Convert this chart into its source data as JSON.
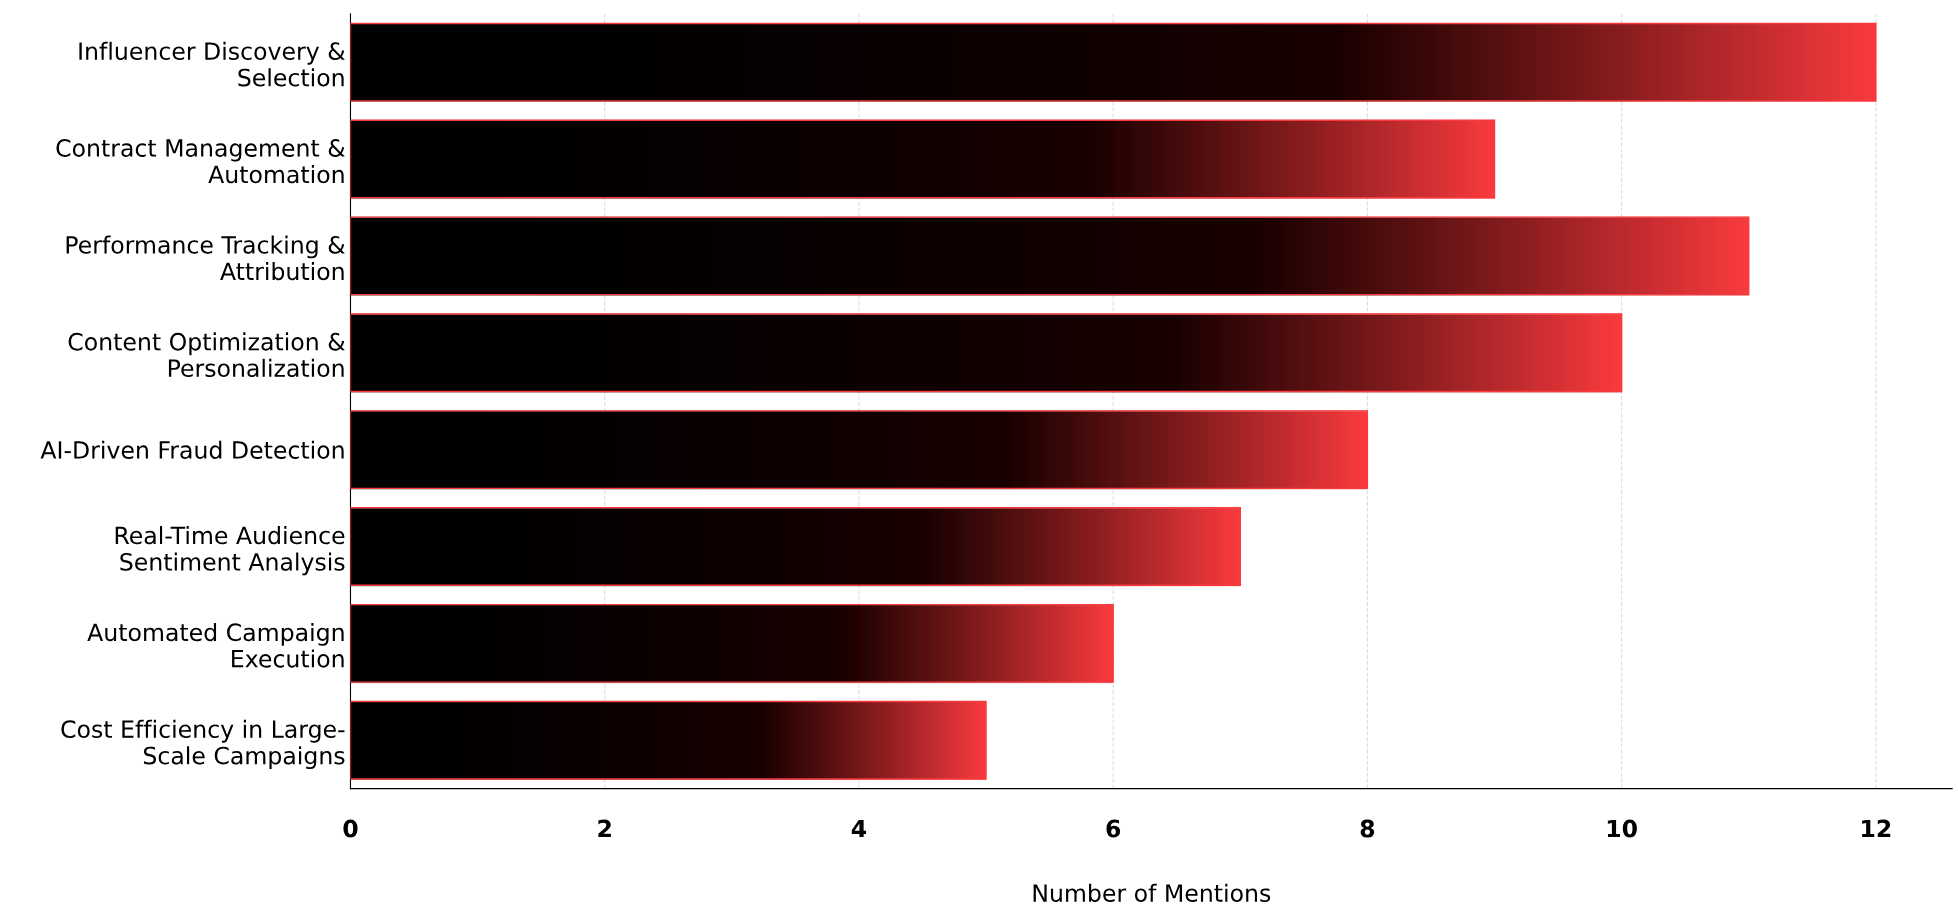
{
  "chart_data": {
    "type": "bar",
    "orientation": "horizontal",
    "xlabel": "Number of Mentions",
    "categories": [
      "Influencer Discovery &\nSelection",
      "Contract Management &\nAutomation",
      "Performance Tracking &\nAttribution",
      "Content Optimization &\nPersonalization",
      "AI-Driven Fraud Detection",
      "Real-Time Audience\nSentiment Analysis",
      "Automated Campaign\nExecution",
      "Cost Efficiency in Large-\nScale Campaigns"
    ],
    "values": [
      12,
      9,
      11,
      10,
      8,
      7,
      6,
      5
    ],
    "color": "#f83a3e",
    "xlim": [
      0,
      12.6
    ],
    "xticks": [
      0,
      2,
      4,
      6,
      8,
      10,
      12
    ],
    "grid": "x"
  }
}
